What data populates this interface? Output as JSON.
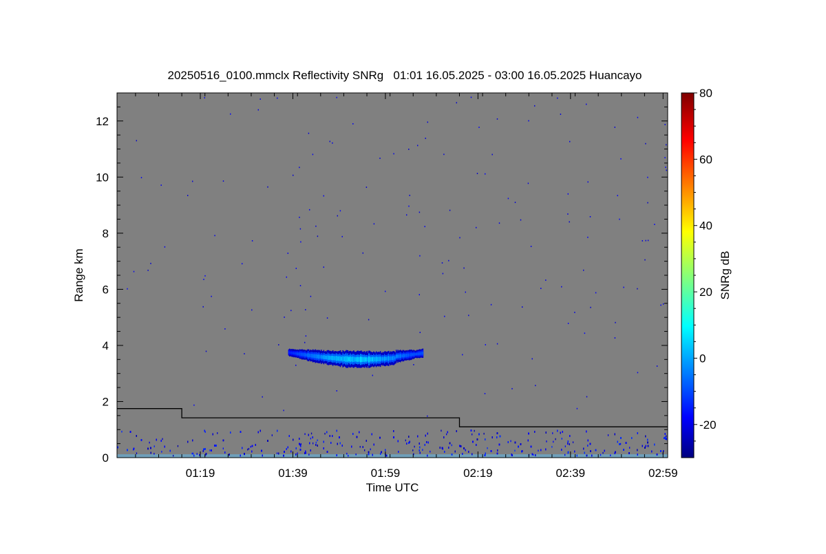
{
  "chart_data": {
    "type": "heatmap",
    "title": "20250516_0100.mmclx Reflectivity SNRg   01:01 16.05.2025 - 03:00 16.05.2025 Huancayo",
    "xlabel": "Time UTC",
    "ylabel": "Range km",
    "x_ticks": [
      "01:19",
      "01:39",
      "01:59",
      "02:19",
      "02:39",
      "02:59"
    ],
    "x_range": [
      "01:01",
      "03:00"
    ],
    "y_ticks": [
      0,
      2,
      4,
      6,
      8,
      10,
      12
    ],
    "ylim": [
      0,
      13
    ],
    "background_color": "#808080",
    "colorbar": {
      "label": "SNRg dB",
      "ticks": [
        -20,
        0,
        20,
        40,
        60,
        80
      ],
      "range": [
        -30,
        80
      ],
      "colormap": "jet"
    },
    "threshold_line": {
      "description_units": "km",
      "points": [
        {
          "x": "01:01",
          "y": 1.75
        },
        {
          "x": "01:15",
          "y": 1.75
        },
        {
          "x": "01:15",
          "y": 1.42
        },
        {
          "x": "02:15",
          "y": 1.42
        },
        {
          "x": "02:15",
          "y": 1.1
        },
        {
          "x": "03:00",
          "y": 1.1
        }
      ]
    },
    "cloud_layer": {
      "start": "01:38",
      "end": "02:07",
      "range_km": [
        3.2,
        4.05
      ],
      "snr_db": [
        -25,
        10
      ]
    },
    "near_surface_clutter_km": [
      0.1,
      1.0
    ],
    "noise_speckle": "scattered single pixels, about -20 dB"
  }
}
